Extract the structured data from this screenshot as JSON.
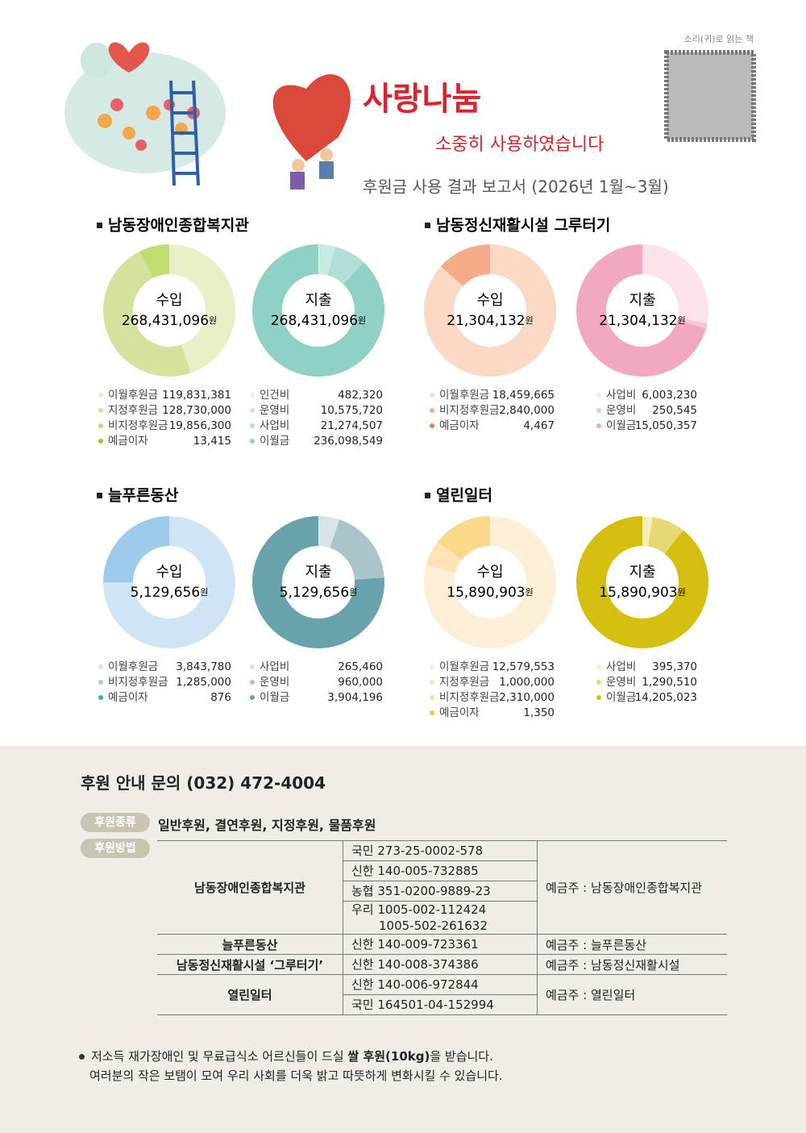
{
  "header": {
    "title": "사랑나눔",
    "subtitle": "소중히 사용하였습니다",
    "report": "후원금 사용 결과 보고서 (2026년 1월~3월)",
    "audio": "소리(귀)로 읽는 책"
  },
  "sections": [
    "남동장애인종합복지관",
    "남동정신재활시설 그루터기",
    "늘푸른동산",
    "열린일터"
  ],
  "chart_data": [
    {
      "type": "donut",
      "title": "수입",
      "total": "268,431,096",
      "unit": "원",
      "categories": [
        "이월후원금",
        "지정후원금",
        "비지정후원금",
        "예금이자"
      ],
      "values": [
        119831381,
        128730000,
        19856300,
        13415
      ],
      "value_labels": [
        "119,831,381",
        "128,730,000",
        "19,856,300",
        "13,415"
      ],
      "colors": [
        "#e7f0c6",
        "#d3e39b",
        "#c3dc70",
        "#9cc22c"
      ]
    },
    {
      "type": "donut",
      "title": "지출",
      "total": "268,431,096",
      "unit": "원",
      "categories": [
        "인건비",
        "운영비",
        "사업비",
        "이월금"
      ],
      "values": [
        482320,
        10575720,
        21274507,
        236098549
      ],
      "value_labels": [
        "482,320",
        "10,575,720",
        "21,274,507",
        "236,098,549"
      ],
      "colors": [
        "#e7f4f1",
        "#c8e9e2",
        "#b1ded6",
        "#90d1c6"
      ]
    },
    {
      "type": "donut",
      "title": "수입",
      "total": "21,304,132",
      "unit": "원",
      "categories": [
        "이월후원금",
        "비지정후원금",
        "예금이자"
      ],
      "values": [
        18459665,
        2840000,
        4467
      ],
      "value_labels": [
        "18,459,665",
        "2,840,000",
        "4,467"
      ],
      "colors": [
        "#fbd9c5",
        "#f5ab88",
        "#ee7e4a"
      ]
    },
    {
      "type": "donut",
      "title": "지출",
      "total": "21,304,132",
      "unit": "원",
      "categories": [
        "사업비",
        "운영비",
        "이월금"
      ],
      "values": [
        6003230,
        250545,
        15050357
      ],
      "value_labels": [
        "6,003,230",
        "250,545",
        "15,050,357"
      ],
      "colors": [
        "#fce3ea",
        "#f7c4d4",
        "#f2a8c0"
      ]
    },
    {
      "type": "donut",
      "title": "수입",
      "total": "5,129,656",
      "unit": "원",
      "categories": [
        "이월후원금",
        "비지정후원금",
        "예금이자"
      ],
      "values": [
        3843780,
        1285000,
        876
      ],
      "value_labels": [
        "3,843,780",
        "1,285,000",
        "876"
      ],
      "colors": [
        "#cfe4f5",
        "#9ecbec",
        "#39a3df"
      ]
    },
    {
      "type": "donut",
      "title": "지출",
      "total": "5,129,656",
      "unit": "원",
      "categories": [
        "사업비",
        "운영비",
        "이월금"
      ],
      "values": [
        265460,
        960000,
        3904196
      ],
      "value_labels": [
        "265,460",
        "960,000",
        "3,904,196"
      ],
      "colors": [
        "#d8e5e8",
        "#a9c5cb",
        "#68a2ab"
      ]
    },
    {
      "type": "donut",
      "title": "수입",
      "total": "15,890,903",
      "unit": "원",
      "categories": [
        "이월후원금",
        "지정후원금",
        "비지정후원금",
        "예금이자"
      ],
      "values": [
        12579553,
        1000000,
        2310000,
        1350
      ],
      "value_labels": [
        "12,579,553",
        "1,000,000",
        "2,310,000",
        "1,350"
      ],
      "colors": [
        "#fdefd7",
        "#fde3b5",
        "#fcd88b",
        "#f5c343"
      ]
    },
    {
      "type": "donut",
      "title": "지출",
      "total": "15,890,903",
      "unit": "원",
      "categories": [
        "사업비",
        "운영비",
        "이월금"
      ],
      "values": [
        395370,
        1290510,
        14205023
      ],
      "value_labels": [
        "395,370",
        "1,290,510",
        "14,205,023"
      ],
      "colors": [
        "#f5efba",
        "#e8d874",
        "#d4bf10"
      ]
    }
  ],
  "contact": {
    "title": "후원 안내 문의 (032) 472-4004",
    "types_label": "후원종류",
    "types": "일반후원, 결연후원, 지정후원, 물품후원",
    "method_label": "후원방법",
    "rows": [
      {
        "org": "남동장애인종합복지관",
        "accounts": [
          [
            "국민 273-25-0002-578"
          ],
          [
            "신한 140-005-732885"
          ],
          [
            "농협 351-0200-9889-23"
          ],
          [
            "우리 1005-002-112424",
            "1005-502-261632"
          ]
        ],
        "holder": "예금주 : 남동장애인종합복지관"
      },
      {
        "org": "늘푸른동산",
        "accounts": [
          [
            "신한 140-009-723361"
          ]
        ],
        "holder": "예금주 : 늘푸른동산"
      },
      {
        "org": "남동정신재활시설 ‘그루터기’",
        "accounts": [
          [
            "신한 140-008-374386"
          ]
        ],
        "holder": "예금주 : 남동정신재활시설"
      },
      {
        "org": "열린일터",
        "accounts": [
          [
            "신한 140-006-972844"
          ],
          [
            "국민 164501-04-152994"
          ]
        ],
        "holder": "예금주 : 열린일터"
      }
    ]
  },
  "notes": [
    [
      "저소득 재가장애인 및 무료급식소 어르신들이 드실 ",
      "쌀 후원(10kg)",
      "을 받습니다."
    ],
    [
      "여러분의 작은 보탬이 모여 우리 사회를 더욱 밝고 따뜻하게 변화시킬 수 있습니다."
    ]
  ]
}
